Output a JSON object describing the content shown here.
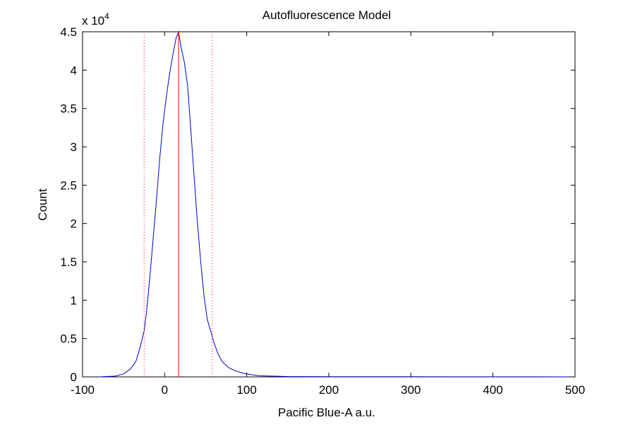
{
  "chart_data": {
    "type": "line",
    "title": "Autofluorescence Model",
    "xlabel": "Pacific Blue-A a.u.",
    "ylabel": "Count",
    "y_multiplier_label": "x 10",
    "y_multiplier_exponent": "4",
    "xlim": [
      -100,
      500
    ],
    "ylim": [
      0,
      4.5
    ],
    "x_ticks": [
      -100,
      0,
      100,
      200,
      300,
      400,
      500
    ],
    "y_ticks": [
      0,
      0.5,
      1,
      1.5,
      2,
      2.5,
      3,
      3.5,
      4,
      4.5
    ],
    "x_tick_labels": [
      "-100",
      "0",
      "100",
      "200",
      "300",
      "400",
      "500"
    ],
    "y_tick_labels": [
      "0",
      "0.5",
      "1",
      "1.5",
      "2",
      "2.5",
      "3",
      "3.5",
      "4",
      "4.5"
    ],
    "grid": false,
    "series": [
      {
        "color": "#0000cc",
        "x": [
          -80,
          -60,
          -50,
          -42,
          -35,
          -30,
          -25,
          -22,
          -18,
          -14,
          -10,
          -6,
          -2,
          2,
          6,
          10,
          14,
          17,
          20,
          24,
          28,
          32,
          36,
          40,
          44,
          48,
          52,
          56,
          60,
          65,
          70,
          78,
          86,
          95,
          105,
          115,
          130,
          150,
          200,
          250,
          300,
          350,
          400,
          450,
          490
        ],
        "y": [
          0.0,
          0.01,
          0.04,
          0.1,
          0.2,
          0.38,
          0.6,
          0.85,
          1.3,
          1.8,
          2.3,
          2.85,
          3.3,
          3.65,
          3.95,
          4.2,
          4.42,
          4.5,
          4.3,
          4.1,
          3.8,
          3.2,
          2.6,
          2.0,
          1.5,
          1.05,
          0.75,
          0.6,
          0.45,
          0.3,
          0.2,
          0.12,
          0.08,
          0.05,
          0.03,
          0.015,
          0.01,
          0.005,
          0.003,
          0.002,
          0.002,
          0.001,
          0.001,
          0.001,
          0.0
        ]
      }
    ],
    "vertical_lines": [
      {
        "x": 17,
        "color": "#ff0000",
        "style": "solid"
      },
      {
        "x": -25,
        "color": "#ff0000",
        "style": "dotted"
      },
      {
        "x": 58,
        "color": "#ff0000",
        "style": "dotted"
      }
    ]
  }
}
